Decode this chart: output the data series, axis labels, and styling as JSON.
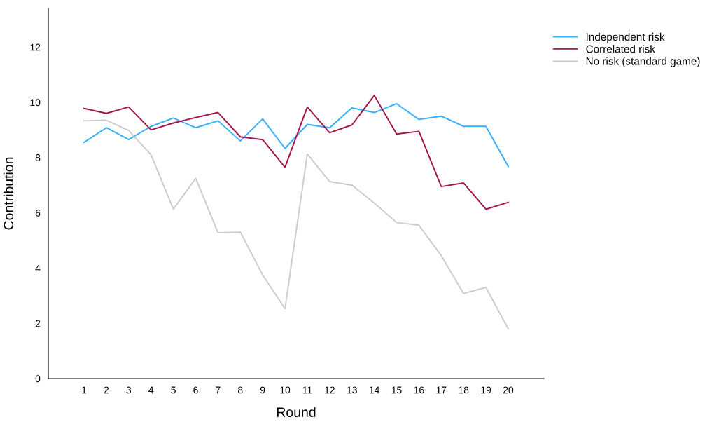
{
  "chart_data": {
    "type": "line",
    "xlabel": "Round",
    "ylabel": "Contribution",
    "categories": [
      "1",
      "2",
      "3",
      "4",
      "5",
      "6",
      "7",
      "8",
      "9",
      "10",
      "11",
      "12",
      "13",
      "14",
      "15",
      "16",
      "17",
      "18",
      "19",
      "20"
    ],
    "series": [
      {
        "name": "Independent risk",
        "color": "#33b0ff",
        "values": [
          8.55,
          9.08,
          8.65,
          9.13,
          9.43,
          9.08,
          9.33,
          8.6,
          9.4,
          8.33,
          9.2,
          9.08,
          9.8,
          9.63,
          9.95,
          9.38,
          9.5,
          9.13,
          9.13,
          7.68
        ]
      },
      {
        "name": "Correlated risk",
        "color": "#a3154a",
        "values": [
          9.78,
          9.6,
          9.83,
          9.0,
          9.25,
          9.45,
          9.63,
          8.75,
          8.65,
          7.65,
          9.83,
          8.9,
          9.18,
          10.25,
          8.85,
          8.95,
          6.95,
          7.08,
          6.13,
          6.38
        ]
      },
      {
        "name": "No risk (standard game)",
        "color": "#cccccc",
        "values": [
          9.33,
          9.35,
          8.98,
          8.1,
          6.13,
          7.25,
          5.28,
          5.3,
          3.75,
          2.53,
          8.13,
          7.13,
          7.0,
          6.35,
          5.65,
          5.55,
          4.45,
          3.08,
          3.3,
          1.8
        ]
      }
    ],
    "ylim": [
      0,
      13.4
    ],
    "yticks": [
      0,
      2,
      4,
      6,
      8,
      10,
      12
    ],
    "grid": false,
    "legend": "top right",
    "marker": "none",
    "line_style": "solid"
  }
}
